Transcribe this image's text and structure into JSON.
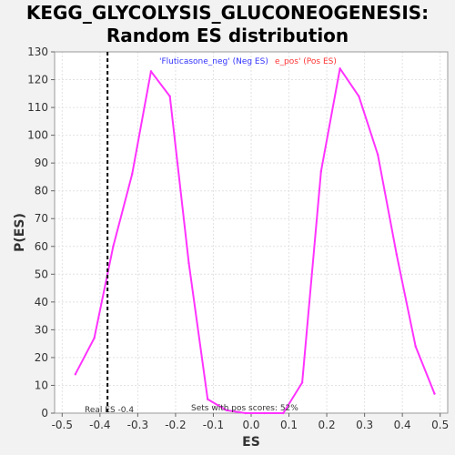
{
  "chart_data": {
    "type": "line",
    "title_line1": "KEGG_GLYCOLYSIS_GLUCONEOGENESIS:",
    "title_line2": "Random ES distribution",
    "xlabel": "ES",
    "ylabel": "P(ES)",
    "xlim": [
      -0.52,
      0.52
    ],
    "ylim": [
      0,
      130
    ],
    "xticks": [
      -0.5,
      -0.4,
      -0.3,
      -0.2,
      -0.1,
      0.0,
      0.1,
      0.2,
      0.3,
      0.4,
      0.5
    ],
    "xtick_labels": [
      "-0.5",
      "-0.4",
      "-0.3",
      "-0.2",
      "-0.1",
      "0.0",
      "0.1",
      "0.2",
      "0.3",
      "0.4",
      "0.5"
    ],
    "yticks": [
      0,
      10,
      20,
      30,
      40,
      50,
      60,
      70,
      80,
      90,
      100,
      110,
      120,
      130
    ],
    "ytick_labels": [
      "0",
      "10",
      "20",
      "30",
      "40",
      "50",
      "60",
      "70",
      "80",
      "90",
      "100",
      "110",
      "120",
      "130"
    ],
    "grid": true,
    "series": [
      {
        "color": "#ff33ff",
        "x": [
          -0.465,
          -0.415,
          -0.365,
          -0.315,
          -0.265,
          -0.215,
          -0.165,
          -0.115,
          -0.065,
          -0.015,
          0.035,
          0.085,
          0.135,
          0.185,
          0.235,
          0.285,
          0.335,
          0.385,
          0.435,
          0.485
        ],
        "y": [
          14,
          27,
          60,
          86,
          123,
          114,
          54,
          5,
          1,
          0,
          0,
          0,
          11,
          87,
          124,
          114,
          93,
          57,
          24,
          7
        ]
      }
    ],
    "real_es": -0.38,
    "real_es_label": "Real ES -0.4",
    "pos_scores_label": "Sets with pos scores: 52%",
    "neg_label": "'Fluticasone_neg' (Neg ES)",
    "pos_label": "e_pos' (Pos ES)",
    "colors": {
      "line": "#ff33ff",
      "neg_text": "#3333ff",
      "pos_text": "#ff3333",
      "grid": "#e2e2e2",
      "plot_bg": "#ffffff",
      "page_bg": "#f2f2f2"
    }
  }
}
